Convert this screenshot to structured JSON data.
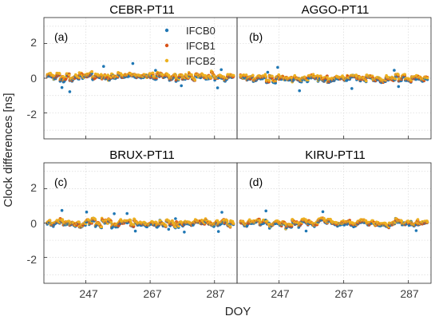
{
  "chart_data": {
    "type": "scatter",
    "xlabel": "DOY",
    "ylabel": "Clock differences [ns]",
    "xlim": [
      234,
      294
    ],
    "ylim": [
      -3.5,
      3.5
    ],
    "xticks": [
      247,
      267,
      287
    ],
    "yticks": [
      -2,
      0,
      2
    ],
    "grid": true,
    "legend_placement": "top-right of panel (a)",
    "series": [
      {
        "name": "IFCB0",
        "color": "#1f77b4"
      },
      {
        "name": "IFCB1",
        "color": "#d95319"
      },
      {
        "name": "IFCB2",
        "color": "#edb120"
      }
    ],
    "panels": [
      {
        "title": "CEBR-PT11",
        "tag": "(a)",
        "station_offset": 0.1
      },
      {
        "title": "AGGO-PT11",
        "tag": "(b)",
        "station_offset": 0.0
      },
      {
        "title": "BRUX-PT11",
        "tag": "(c)",
        "station_offset": 0.0
      },
      {
        "title": "KIRU-PT11",
        "tag": "(d)",
        "station_offset": 0.0
      }
    ]
  }
}
